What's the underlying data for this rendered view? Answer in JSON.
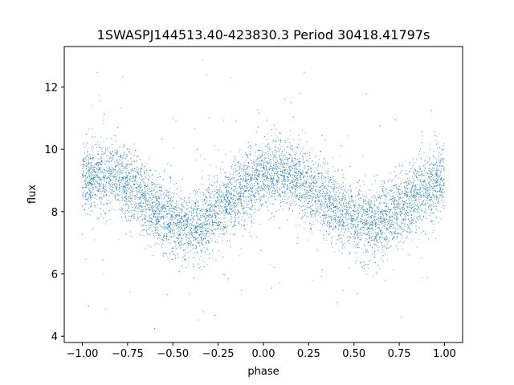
{
  "chart_data": {
    "type": "scatter",
    "title": "1SWASPJ144513.40-423830.3 Period 30418.41797s",
    "xlabel": "phase",
    "ylabel": "flux",
    "xlim": [
      -1.1,
      1.1
    ],
    "ylim": [
      3.8,
      13.3
    ],
    "xticks": [
      -1.0,
      -0.75,
      -0.5,
      -0.25,
      0.0,
      0.25,
      0.5,
      0.75,
      1.0
    ],
    "xtick_labels": [
      "−1.00",
      "−0.75",
      "−0.50",
      "−0.25",
      "0.00",
      "0.25",
      "0.50",
      "0.75",
      "1.00"
    ],
    "yticks": [
      4,
      6,
      8,
      10,
      12
    ],
    "ytick_labels": [
      "4",
      "6",
      "8",
      "10",
      "12"
    ],
    "grid": false,
    "legend": "none",
    "marker_color": "#1f77b4",
    "series": [
      {
        "description_of_trend": "dense band of points following a sinusoid with two cycles over phase -1 to 1",
        "x": [
          -1.0,
          -0.9,
          -0.8,
          -0.7,
          -0.6,
          -0.5,
          -0.4,
          -0.3,
          -0.2,
          -0.1,
          0.0,
          0.1,
          0.2,
          0.3,
          0.4,
          0.5,
          0.6,
          0.7,
          0.8,
          0.9,
          1.0
        ],
        "y_center": [
          9.0,
          9.2,
          9.1,
          8.7,
          8.1,
          7.6,
          7.5,
          7.8,
          8.3,
          8.8,
          9.1,
          9.2,
          9.0,
          8.6,
          8.1,
          7.7,
          7.5,
          7.8,
          8.3,
          8.8,
          9.1
        ],
        "band_half_width": 1.0,
        "y_min_observed": 4.2,
        "y_max_observed": 12.9
      }
    ]
  }
}
